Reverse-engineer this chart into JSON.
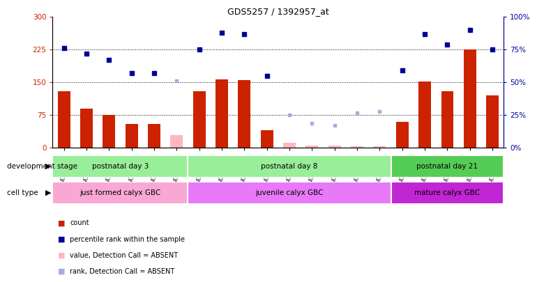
{
  "title": "GDS5257 / 1392957_at",
  "samples": [
    "GSM1202424",
    "GSM1202425",
    "GSM1202426",
    "GSM1202427",
    "GSM1202428",
    "GSM1202429",
    "GSM1202430",
    "GSM1202431",
    "GSM1202432",
    "GSM1202433",
    "GSM1202434",
    "GSM1202435",
    "GSM1202436",
    "GSM1202437",
    "GSM1202438",
    "GSM1202439",
    "GSM1202440",
    "GSM1202441",
    "GSM1202442",
    "GSM1202443"
  ],
  "counts": [
    130,
    90,
    75,
    55,
    55,
    null,
    130,
    157,
    155,
    40,
    null,
    null,
    null,
    null,
    null,
    60,
    152,
    130,
    225,
    120
  ],
  "counts_absent": [
    null,
    null,
    null,
    null,
    null,
    30,
    null,
    null,
    null,
    null,
    12,
    6,
    5,
    3,
    4,
    null,
    null,
    null,
    null,
    null
  ],
  "ranks": [
    76,
    72,
    67,
    57,
    57,
    null,
    75,
    88,
    87,
    55,
    null,
    null,
    null,
    null,
    null,
    59,
    87,
    79,
    90,
    75
  ],
  "ranks_absent": [
    null,
    null,
    null,
    null,
    null,
    51,
    null,
    null,
    null,
    null,
    25,
    19,
    17,
    27,
    28,
    null,
    null,
    null,
    null,
    null
  ],
  "dev_groups": [
    {
      "label": "postnatal day 3",
      "start": 0,
      "end": 5,
      "color": "#99ee99"
    },
    {
      "label": "postnatal day 8",
      "start": 6,
      "end": 14,
      "color": "#99ee99"
    },
    {
      "label": "postnatal day 21",
      "start": 15,
      "end": 19,
      "color": "#55cc55"
    }
  ],
  "cell_groups": [
    {
      "label": "just formed calyx GBC",
      "start": 0,
      "end": 5,
      "color": "#f9a8d4"
    },
    {
      "label": "juvenile calyx GBC",
      "start": 6,
      "end": 14,
      "color": "#e879f9"
    },
    {
      "label": "mature calyx GBC",
      "start": 15,
      "end": 19,
      "color": "#c026d3"
    }
  ],
  "ylim_left": [
    0,
    300
  ],
  "ylim_right": [
    0,
    100
  ],
  "yticks_left": [
    0,
    75,
    150,
    225,
    300
  ],
  "yticks_right": [
    0,
    25,
    50,
    75,
    100
  ],
  "bar_color": "#cc2200",
  "bar_absent_color": "#ffb6c1",
  "rank_color": "#000099",
  "rank_absent_color": "#aaaadd",
  "background_color": "#ffffff"
}
